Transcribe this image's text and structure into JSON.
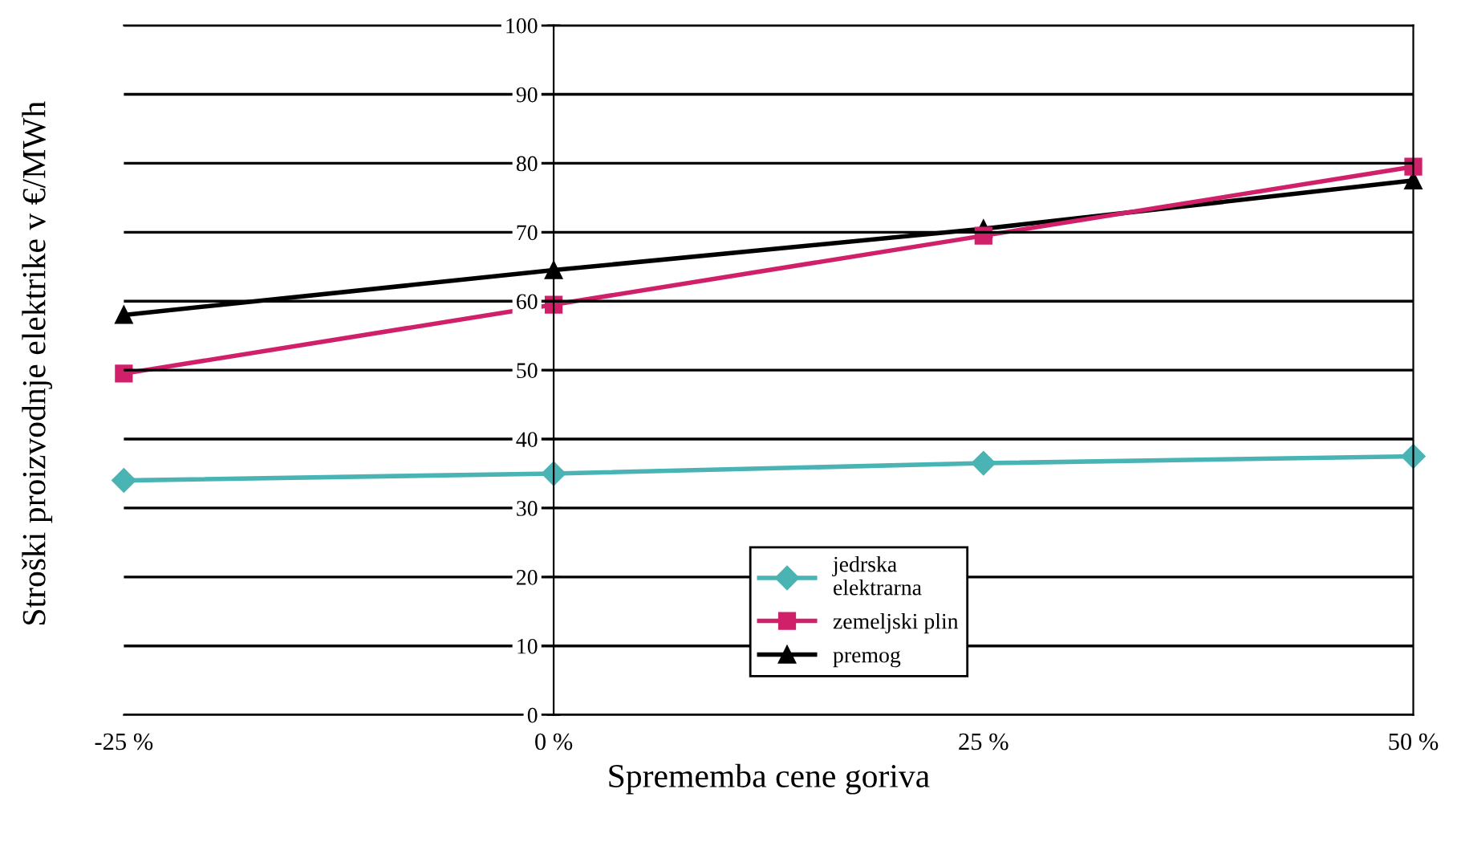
{
  "chart_data": {
    "type": "line",
    "xlabel": "Sprememba cene goriva",
    "ylabel": "Stroški proizvodnje elektrike v €/MWh",
    "x": [
      -25,
      0,
      25,
      50
    ],
    "xlim": [
      -25,
      50
    ],
    "xticks": [
      {
        "value": -25,
        "label": "-25 %"
      },
      {
        "value": 0,
        "label": "0 %"
      },
      {
        "value": 25,
        "label": "25 %"
      },
      {
        "value": 50,
        "label": "50 %"
      }
    ],
    "ylim": [
      0,
      100
    ],
    "yticks": [
      0,
      10,
      20,
      30,
      40,
      50,
      60,
      70,
      80,
      90,
      100
    ],
    "grid": "y",
    "legend": "bottom",
    "line_style": "solid",
    "series": [
      {
        "name": "jedrska\nelektrarna",
        "color": "#4ab3b3",
        "marker": "diamond",
        "values": [
          34,
          35,
          36.5,
          37.5
        ]
      },
      {
        "name": "zemeljski plin",
        "color": "#d0206a",
        "marker": "square",
        "values": [
          49.5,
          59.5,
          69.5,
          79.5
        ]
      },
      {
        "name": "premog",
        "color": "#000000",
        "marker": "triangle",
        "values": [
          58,
          64.5,
          70.5,
          77.5
        ]
      }
    ]
  }
}
